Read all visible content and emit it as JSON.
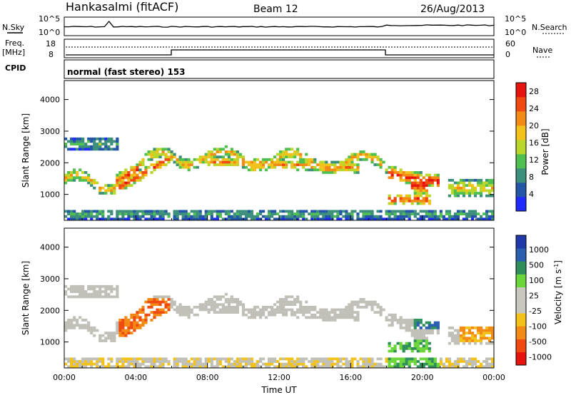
{
  "header": {
    "station": "Hankasalmi (fitACF)",
    "beam": "Beam 12",
    "date": "26/Aug/2013"
  },
  "summary": {
    "nsky_label": "N.Sky",
    "nsearch_label": "N.Search",
    "noise_ticks": [
      "10^5",
      "10^0"
    ],
    "freq_label_line1": "Freq.",
    "freq_label_line2": "[MHz]",
    "freq_ticks": [
      "18",
      "8"
    ],
    "nave_label": "Nave",
    "nave_ticks": [
      "60",
      "0"
    ],
    "cpid_label": "CPID",
    "cpid_value": "normal (fast stereo) 153"
  },
  "colors": {
    "power": [
      "#1f2bff",
      "#2456a8",
      "#3b8f7b",
      "#4fbf4f",
      "#b9d62a",
      "#f2c21a",
      "#f28a14",
      "#f04a10",
      "#e6140c"
    ],
    "velocity": [
      "#e6140c",
      "#f04a10",
      "#f28a14",
      "#f2c21a",
      "#c8c8c0",
      "#c8c8c0",
      "#6bd63a",
      "#2f8f5a",
      "#2a5fb0",
      "#1f3aa8"
    ],
    "ground_scatter": "#c0c0b8"
  },
  "chart_data": [
    {
      "type": "heatmap",
      "name": "power",
      "xlabel": "",
      "ylabel": "Slant Range [km]",
      "x_ticks": [
        "00:00",
        "04:00",
        "08:00",
        "12:00",
        "16:00",
        "20:00",
        "00:00"
      ],
      "y_ticks": [
        1000,
        2000,
        3000,
        4000
      ],
      "xlim_hours": [
        0,
        24
      ],
      "ylim_km": [
        180,
        4600
      ],
      "colorbar": {
        "label": "Power [dB]",
        "ticks": [
          "4",
          "8",
          "12",
          "16",
          "20",
          "24",
          "28"
        ],
        "range": [
          0,
          30
        ]
      }
    },
    {
      "type": "heatmap",
      "name": "velocity",
      "xlabel": "Time UT",
      "ylabel": "Slant Range [km]",
      "x_ticks": [
        "00:00",
        "04:00",
        "08:00",
        "12:00",
        "16:00",
        "20:00",
        "00:00"
      ],
      "y_ticks": [
        1000,
        2000,
        3000,
        4000
      ],
      "xlim_hours": [
        0,
        24
      ],
      "ylim_km": [
        180,
        4600
      ],
      "colorbar": {
        "label": "Velocity [m s",
        "label_sup": "-1",
        "label_end": "]",
        "ticks": [
          "1000",
          "500",
          "100",
          "25",
          "-25",
          "-100",
          "-500",
          "-1000"
        ]
      }
    }
  ]
}
